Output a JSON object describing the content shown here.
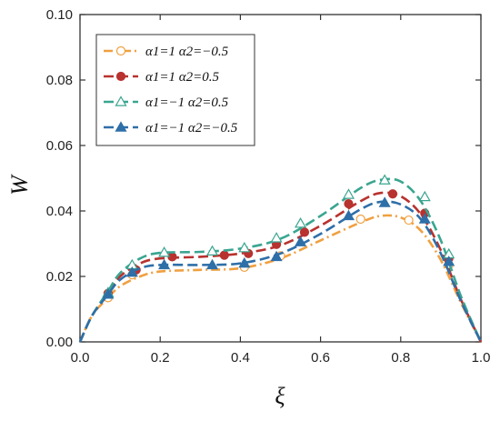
{
  "chart_data": {
    "type": "line",
    "xlabel": "ξ",
    "ylabel": "W",
    "xlim": [
      0.0,
      1.0
    ],
    "ylim": [
      0.0,
      0.1
    ],
    "x_ticks": [
      "0.0",
      "0.2",
      "0.4",
      "0.6",
      "0.8",
      "1.0"
    ],
    "y_ticks": [
      "0.00",
      "0.02",
      "0.04",
      "0.06",
      "0.08",
      "0.10"
    ],
    "grid": false,
    "legend_position": "top-left",
    "series": [
      {
        "name": "α1=1 α2=−0.5",
        "color": "#f0a040",
        "dash": "dashdot",
        "marker": "open-circle",
        "x": [
          0.0,
          0.03,
          0.07,
          0.1,
          0.15,
          0.2,
          0.3,
          0.4,
          0.5,
          0.6,
          0.7,
          0.75,
          0.8,
          0.85,
          0.9,
          0.95,
          1.0
        ],
        "y": [
          0.0,
          0.008,
          0.0135,
          0.017,
          0.02,
          0.0215,
          0.022,
          0.0225,
          0.0255,
          0.031,
          0.0365,
          0.0385,
          0.038,
          0.034,
          0.025,
          0.012,
          0.0
        ],
        "markers_x": [
          0.07,
          0.13,
          0.41,
          0.5,
          0.7,
          0.82,
          0.92
        ],
        "markers_y": [
          0.0135,
          0.0205,
          0.0228,
          0.0263,
          0.0375,
          0.0372,
          0.0235
        ]
      },
      {
        "name": "α1=1 α2=0.5",
        "color": "#b8322f",
        "dash": "dash",
        "marker": "filled-circle",
        "x": [
          0.0,
          0.03,
          0.07,
          0.1,
          0.15,
          0.2,
          0.3,
          0.4,
          0.5,
          0.6,
          0.7,
          0.75,
          0.8,
          0.85,
          0.9,
          0.95,
          1.0
        ],
        "y": [
          0.0,
          0.008,
          0.015,
          0.02,
          0.024,
          0.0255,
          0.026,
          0.027,
          0.0295,
          0.0355,
          0.043,
          0.0455,
          0.0445,
          0.039,
          0.028,
          0.013,
          0.0
        ],
        "markers_x": [
          0.07,
          0.14,
          0.23,
          0.36,
          0.42,
          0.49,
          0.56,
          0.67,
          0.78,
          0.86,
          0.92
        ],
        "markers_y": [
          0.0148,
          0.022,
          0.026,
          0.0265,
          0.027,
          0.0298,
          0.0335,
          0.0422,
          0.0452,
          0.0393,
          0.0255
        ]
      },
      {
        "name": "α1=−1 α2=0.5",
        "color": "#3aa590",
        "dash": "dash",
        "marker": "open-triangle",
        "x": [
          0.0,
          0.03,
          0.07,
          0.1,
          0.15,
          0.2,
          0.3,
          0.4,
          0.5,
          0.6,
          0.7,
          0.75,
          0.8,
          0.85,
          0.9,
          0.95,
          1.0
        ],
        "y": [
          0.0,
          0.008,
          0.0155,
          0.021,
          0.0255,
          0.0272,
          0.0275,
          0.0285,
          0.0315,
          0.0385,
          0.047,
          0.0495,
          0.049,
          0.043,
          0.031,
          0.014,
          0.0
        ],
        "markers_x": [
          0.07,
          0.13,
          0.21,
          0.33,
          0.41,
          0.49,
          0.55,
          0.67,
          0.76,
          0.86,
          0.92
        ],
        "markers_y": [
          0.015,
          0.0235,
          0.0273,
          0.0277,
          0.0287,
          0.0317,
          0.0362,
          0.045,
          0.0494,
          0.0443,
          0.0268
        ]
      },
      {
        "name": "α1=−1 α2=−0.5",
        "color": "#2e6fa8",
        "dash": "dash",
        "marker": "filled-triangle",
        "x": [
          0.0,
          0.03,
          0.07,
          0.1,
          0.15,
          0.2,
          0.3,
          0.4,
          0.5,
          0.6,
          0.7,
          0.75,
          0.8,
          0.85,
          0.9,
          0.95,
          1.0
        ],
        "y": [
          0.0,
          0.008,
          0.0145,
          0.019,
          0.0225,
          0.0235,
          0.0235,
          0.024,
          0.027,
          0.033,
          0.0405,
          0.0428,
          0.042,
          0.0375,
          0.027,
          0.0125,
          0.0
        ],
        "markers_x": [
          0.07,
          0.13,
          0.21,
          0.33,
          0.41,
          0.49,
          0.55,
          0.67,
          0.76,
          0.86,
          0.92
        ],
        "markers_y": [
          0.0145,
          0.0212,
          0.0235,
          0.0235,
          0.024,
          0.026,
          0.0305,
          0.0385,
          0.0425,
          0.0375,
          0.0245
        ]
      }
    ]
  }
}
